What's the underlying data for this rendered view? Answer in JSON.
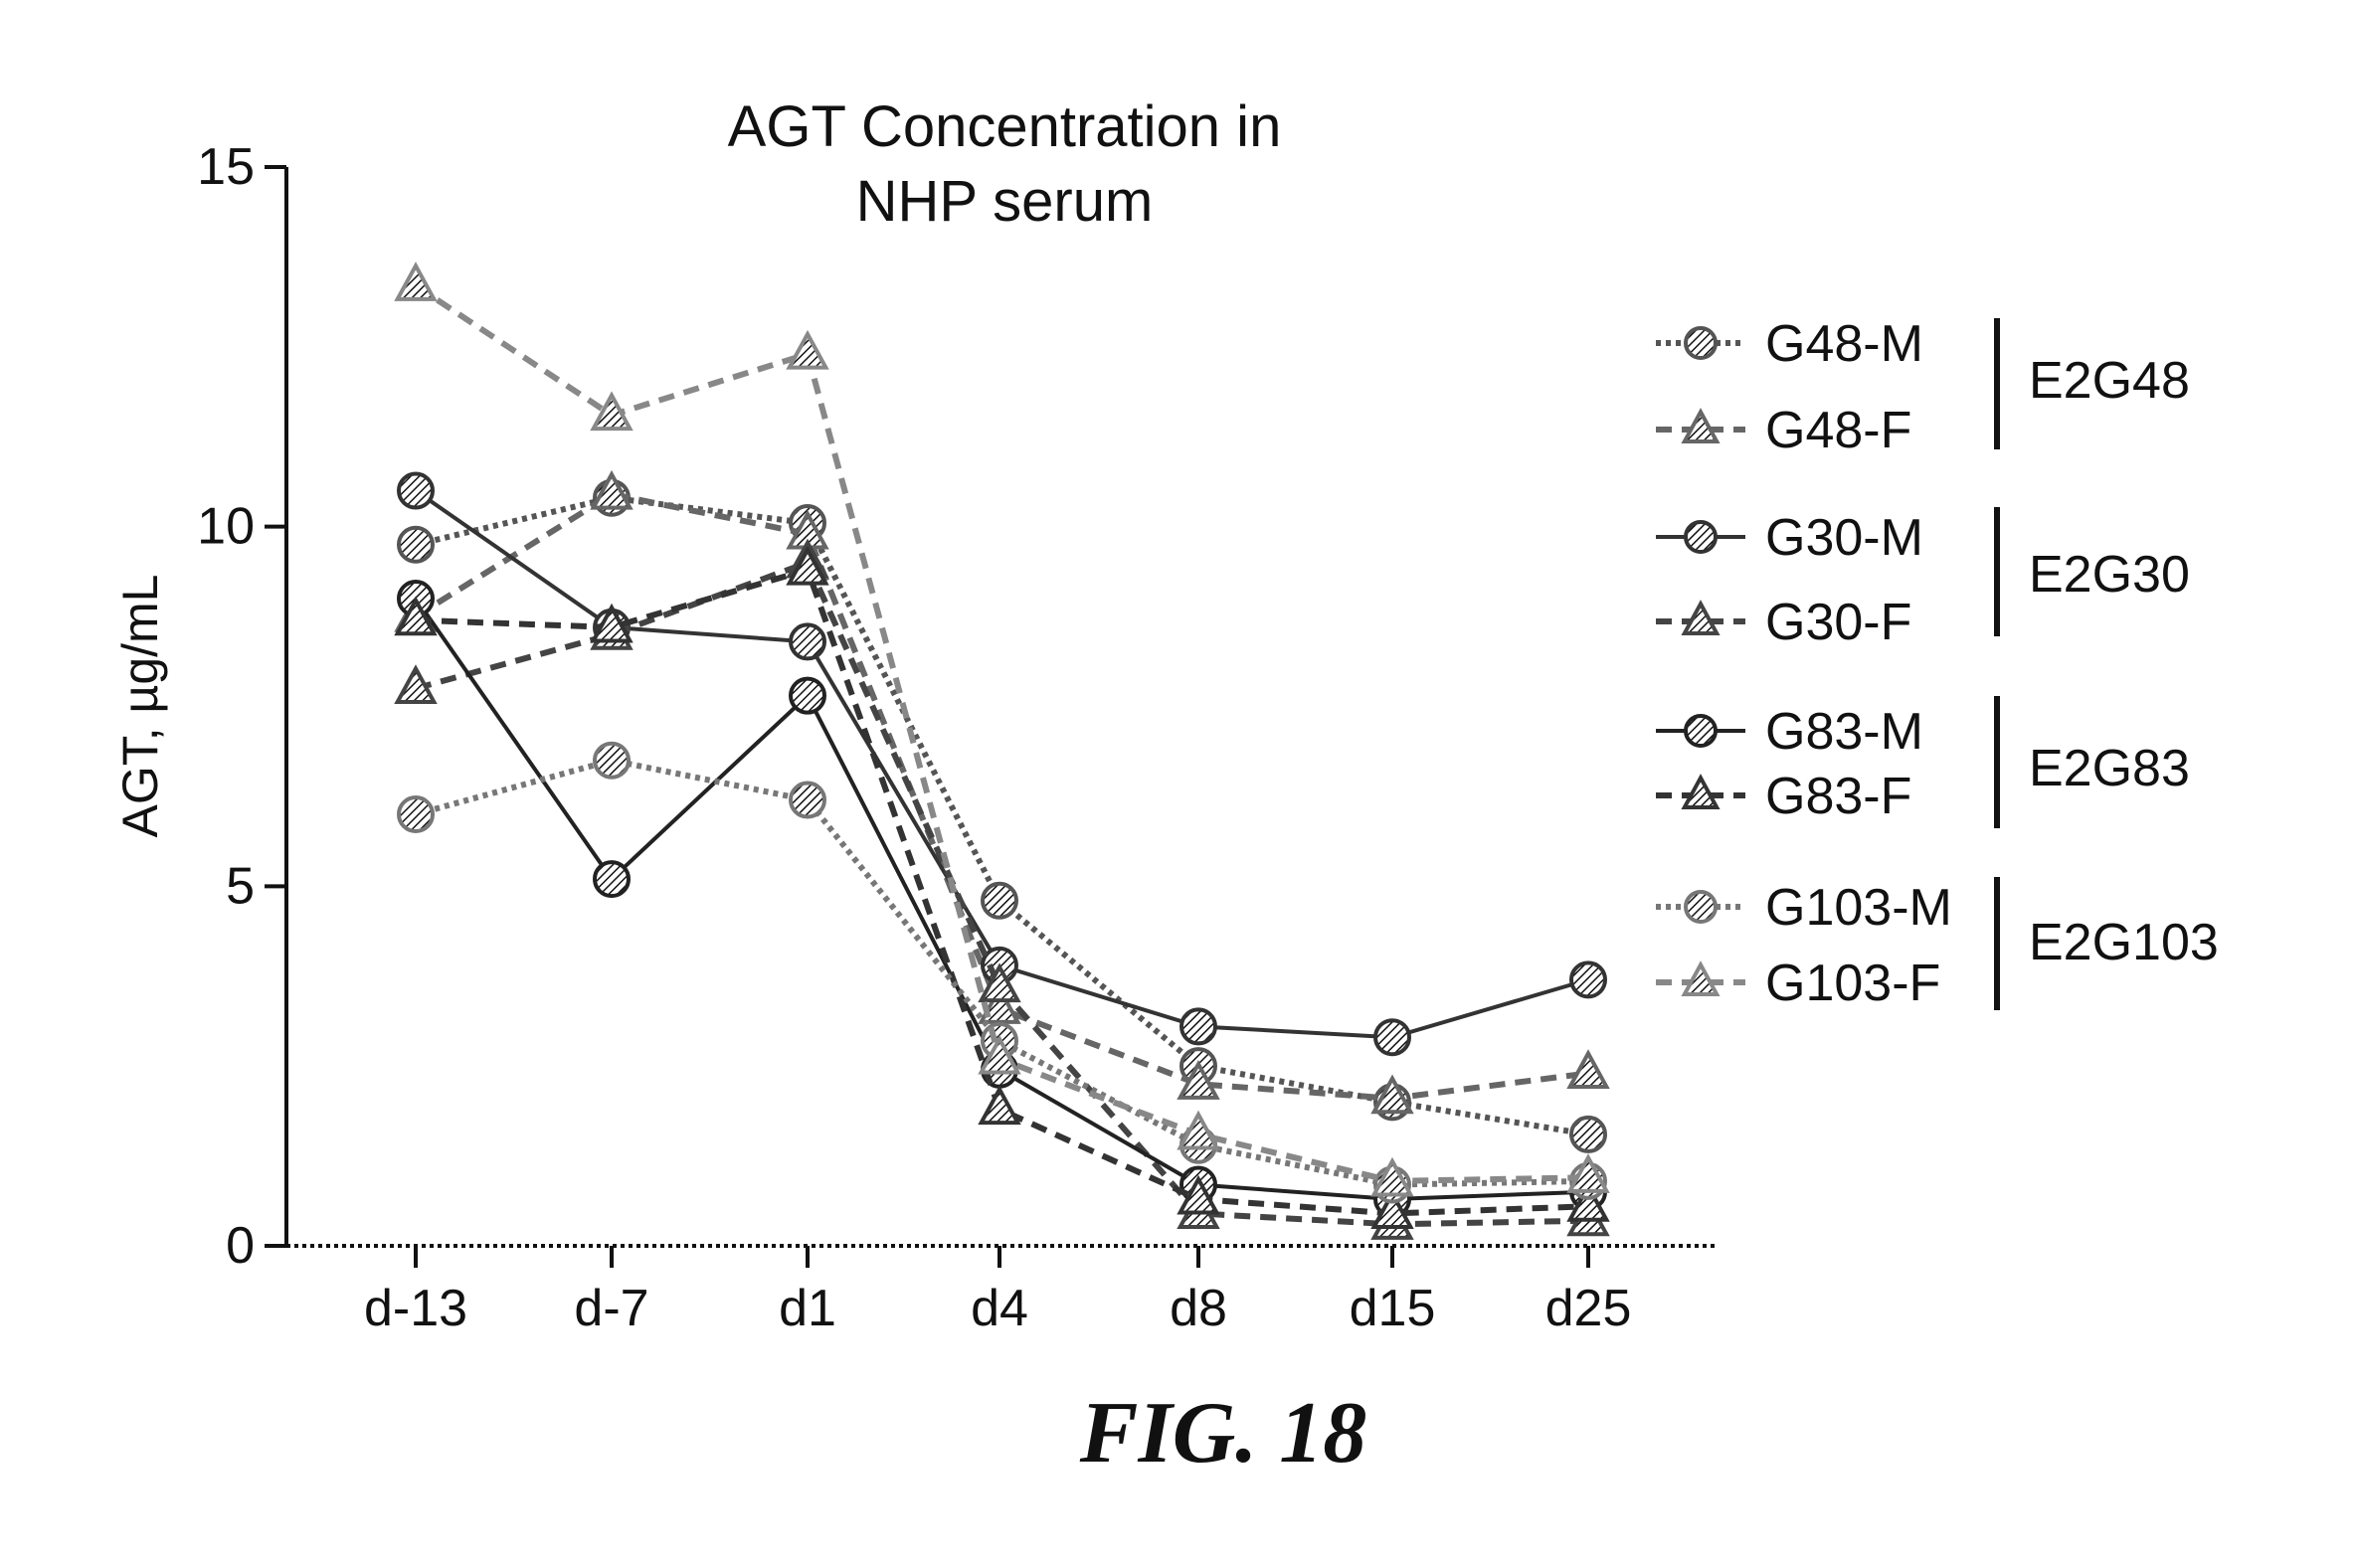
{
  "chart_data": {
    "type": "line",
    "title": [
      "AGT Concentration in",
      "NHP serum"
    ],
    "ylabel": "AGT, µg/mL",
    "xlabel": "",
    "categories": [
      "d-13",
      "d-7",
      "d1",
      "d4",
      "d8",
      "d15",
      "d25"
    ],
    "ylim": [
      0,
      15
    ],
    "yticks": [
      0,
      5,
      10,
      15
    ],
    "grid": false,
    "legend_position": "right",
    "series": [
      {
        "name": "G48-M",
        "group": "E2G48",
        "marker": "circle",
        "line": "dotted",
        "color": "#555555",
        "values": [
          9.75,
          10.4,
          10.05,
          4.8,
          2.5,
          2.0,
          1.55
        ]
      },
      {
        "name": "G48-F",
        "group": "E2G48",
        "marker": "triangle",
        "line": "dashed",
        "color": "#666666",
        "values": [
          8.75,
          10.45,
          9.9,
          3.3,
          2.25,
          2.05,
          2.4
        ]
      },
      {
        "name": "G30-M",
        "group": "E2G30",
        "marker": "circle",
        "line": "solid",
        "color": "#333333",
        "values": [
          10.5,
          8.6,
          8.4,
          3.9,
          3.05,
          2.9,
          3.7
        ]
      },
      {
        "name": "G30-F",
        "group": "E2G30",
        "marker": "triangle",
        "line": "dashed",
        "color": "#444444",
        "values": [
          7.75,
          8.5,
          9.5,
          3.6,
          0.45,
          0.3,
          0.35
        ]
      },
      {
        "name": "G83-M",
        "group": "E2G83",
        "marker": "circle",
        "line": "solid",
        "color": "#222222",
        "values": [
          9.0,
          5.1,
          7.65,
          2.45,
          0.85,
          0.65,
          0.75
        ]
      },
      {
        "name": "G83-F",
        "group": "E2G83",
        "marker": "triangle",
        "line": "dashed",
        "color": "#333333",
        "values": [
          8.7,
          8.6,
          9.4,
          1.9,
          0.65,
          0.45,
          0.55
        ]
      },
      {
        "name": "G103-M",
        "group": "E2G103",
        "marker": "circle",
        "line": "dotted",
        "color": "#777777",
        "values": [
          6.0,
          6.75,
          6.2,
          2.85,
          1.4,
          0.85,
          0.9
        ]
      },
      {
        "name": "G103-F",
        "group": "E2G103",
        "marker": "triangle",
        "line": "dashed",
        "color": "#888888",
        "values": [
          13.35,
          11.55,
          12.4,
          2.6,
          1.55,
          0.9,
          0.95
        ]
      }
    ],
    "legend_groups": [
      "E2G48",
      "E2G30",
      "E2G83",
      "E2G103"
    ]
  },
  "figure_caption": "FIG. 18"
}
